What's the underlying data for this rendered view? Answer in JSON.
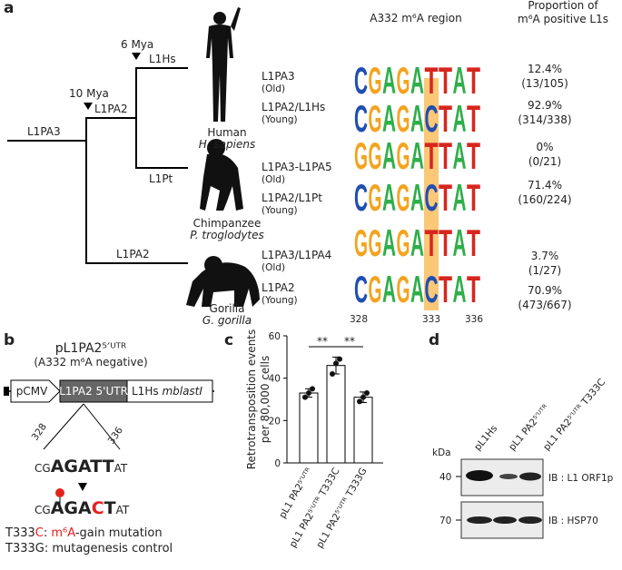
{
  "panel_labels": [
    "a",
    "b",
    "c",
    "d"
  ],
  "tree": {
    "branches": [
      "L1PA3",
      "L1PA2",
      "L1Hs",
      "L1Pt",
      "L1PA2"
    ],
    "times": [
      "10 Mya",
      "6 Mya"
    ]
  },
  "species": [
    {
      "common": "Human",
      "latin": "H. sapiens"
    },
    {
      "common": "Chimpanzee",
      "latin": "P. troglodytes"
    },
    {
      "common": "Gorilla",
      "latin": "G. gorilla"
    }
  ],
  "logo_header": "A332 m⁶A region",
  "proportion_header": [
    "Proportion of",
    "m⁶A positive  L1s"
  ],
  "rows": [
    {
      "name": "L1PA3",
      "age": "(Old)",
      "logo": [
        "C",
        "G",
        "A",
        "G",
        "A",
        "T",
        "T",
        "A",
        "T"
      ],
      "percent": "12.4%",
      "count": "(13/105)"
    },
    {
      "name": "L1PA2/L1Hs",
      "age": "(Young)",
      "logo": [
        "C",
        "G",
        "A",
        "G",
        "A",
        "C",
        "T",
        "A",
        "T"
      ],
      "percent": "92.9%",
      "count": "(314/338)"
    },
    {
      "name": "L1PA3-L1PA5",
      "age": "(Old)",
      "logo": [
        "G",
        "G",
        "A",
        "G",
        "A",
        "T",
        "T",
        "A",
        "T"
      ],
      "percent": "0%",
      "count": "(0/21)"
    },
    {
      "name": "L1PA2/L1Pt",
      "age": "(Young)",
      "logo": [
        "C",
        "G",
        "A",
        "G",
        "A",
        "C",
        "T",
        "A",
        "T"
      ],
      "percent": "71.4%",
      "count": "(160/224)"
    },
    {
      "name": "L1PA3/L1PA4",
      "age": "(Old)",
      "logo": [
        "G",
        "G",
        "A",
        "G",
        "A",
        "T",
        "T",
        "A",
        "T"
      ],
      "percent": "3.7%",
      "count": "(1/27)"
    },
    {
      "name": "L1PA2",
      "age": "(Young)",
      "logo": [
        "C",
        "G",
        "A",
        "G",
        "A",
        "C",
        "T",
        "A",
        "T"
      ],
      "percent": "70.9%",
      "count": "(473/667)"
    }
  ],
  "positions": [
    "328",
    "333",
    "336"
  ],
  "panel_b": {
    "title": "pL1PA2⁵′ᵁᵀᴿ",
    "subtitle": "(A332 m⁶A negative)",
    "construct": [
      "pCMV",
      "L1PA2 5'UTR",
      "L1Hs",
      "mblastI"
    ],
    "positions": [
      "328",
      "336"
    ],
    "wild_type": [
      "CG",
      "AGATT",
      "AT"
    ],
    "mutant": [
      "CG",
      "AGA",
      "C",
      "T",
      "AT"
    ],
    "notes": [
      [
        "T333",
        "C",
        ": ",
        "m⁶A",
        "-gain mutation"
      ],
      [
        "T333G: mutagenesis control"
      ]
    ]
  },
  "chart_data": {
    "type": "bar",
    "categories": [
      "pL1 PA2⁵′ᵁᵀᴿ",
      "pL1 PA2⁵′ᵁᵀᴿ T333C",
      "pL1 PA2⁵′ᵁᵀᴿ T333G"
    ],
    "values": [
      33,
      46,
      31
    ],
    "errors": [
      2,
      4,
      2.5
    ],
    "replicates": [
      [
        31,
        33,
        35
      ],
      [
        42,
        47,
        49
      ],
      [
        29,
        31,
        33
      ]
    ],
    "ylabel": [
      "Retrotransposition events",
      "per 80,000 cells"
    ],
    "significance": [
      "**",
      "**"
    ],
    "ylim": [
      0,
      60
    ],
    "yticks": [
      0,
      20,
      40,
      60
    ],
    "color": "#ffffff"
  },
  "panel_d": {
    "lanes": [
      "pL1Hs",
      "pL1 PA2⁵′ᵁᵀᴿ",
      "pL1 PA2⁵′ᵁᵀᴿ T333C"
    ],
    "unit": "kDa",
    "markers": [
      "40",
      "70"
    ],
    "blots": [
      "IB : L1 ORF1p",
      "IB : HSP70"
    ]
  }
}
